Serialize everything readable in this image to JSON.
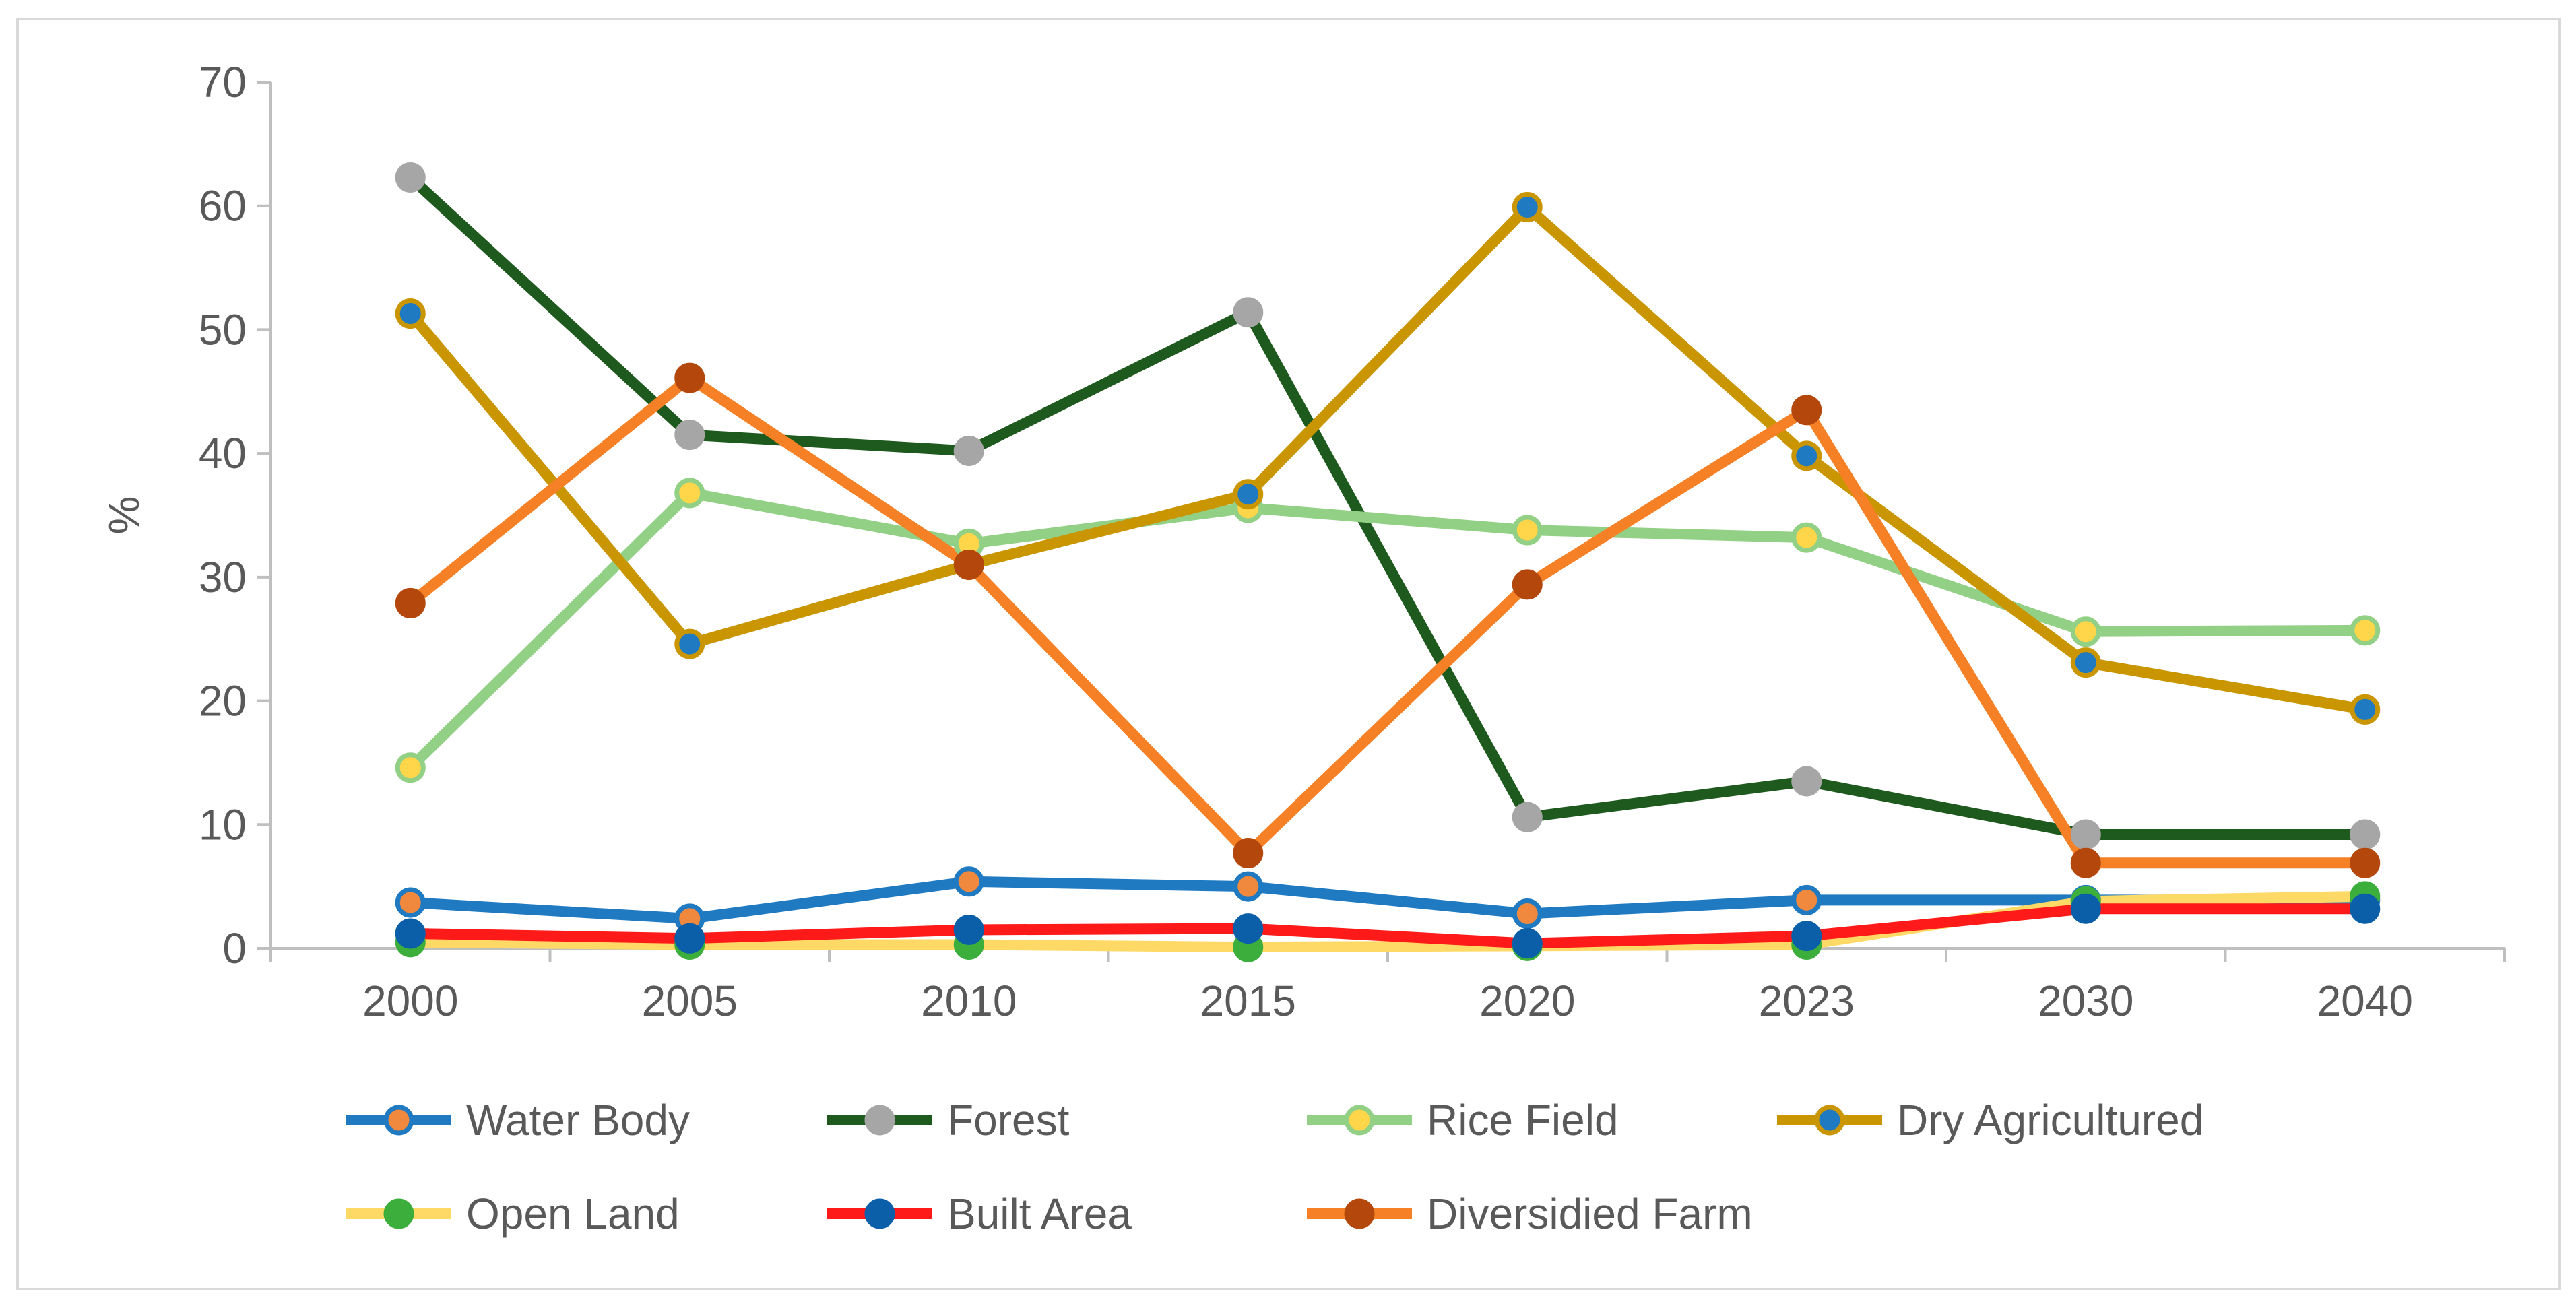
{
  "chart_data": {
    "type": "line",
    "title": "",
    "xlabel": "",
    "ylabel": "%",
    "ylim": [
      0,
      70
    ],
    "yticks": [
      0,
      10,
      20,
      30,
      40,
      50,
      60,
      70
    ],
    "grid": false,
    "legend_position": "bottom",
    "categories": [
      "2000",
      "2005",
      "2010",
      "2015",
      "2020",
      "2023",
      "2030",
      "2040"
    ],
    "series": [
      {
        "name": "Water Body",
        "line_color": "#1f7ac1",
        "marker_fill": "#f0883e",
        "marker_edge": "#1f7ac1",
        "values": [
          3.7,
          2.4,
          5.4,
          5.0,
          2.8,
          3.9,
          3.9,
          3.9
        ]
      },
      {
        "name": "Forest",
        "line_color": "#1e5a1e",
        "marker_fill": "#a6a6a6",
        "marker_edge": "#a6a6a6",
        "values": [
          62.3,
          41.5,
          40.2,
          51.4,
          10.6,
          13.5,
          9.2,
          9.2
        ]
      },
      {
        "name": "Rice Field",
        "line_color": "#92d085",
        "marker_fill": "#ffd54a",
        "marker_edge": "#92d085",
        "values": [
          14.6,
          36.8,
          32.7,
          35.6,
          33.8,
          33.2,
          25.6,
          25.7
        ]
      },
      {
        "name": "Dry Agricultured",
        "line_color": "#c99500",
        "marker_fill": "#1f7ac1",
        "marker_edge": "#c99500",
        "values": [
          51.3,
          24.6,
          31.0,
          36.7,
          59.9,
          39.8,
          23.1,
          19.3
        ]
      },
      {
        "name": "Open Land",
        "line_color": "#ffd966",
        "marker_fill": "#3cae3c",
        "marker_edge": "#3cae3c",
        "values": [
          0.5,
          0.3,
          0.3,
          0.1,
          0.2,
          0.3,
          3.8,
          4.2
        ]
      },
      {
        "name": "Built Area",
        "line_color": "#ff1a1a",
        "marker_fill": "#0b5ea8",
        "marker_edge": "#0b5ea8",
        "values": [
          1.2,
          0.8,
          1.5,
          1.6,
          0.4,
          1.0,
          3.2,
          3.2
        ]
      },
      {
        "name": "Diversidied Farm",
        "line_color": "#f58025",
        "marker_fill": "#b4470b",
        "marker_edge": "#b4470b",
        "values": [
          27.9,
          46.1,
          31.0,
          7.7,
          29.4,
          43.5,
          6.9,
          6.9
        ]
      }
    ]
  }
}
